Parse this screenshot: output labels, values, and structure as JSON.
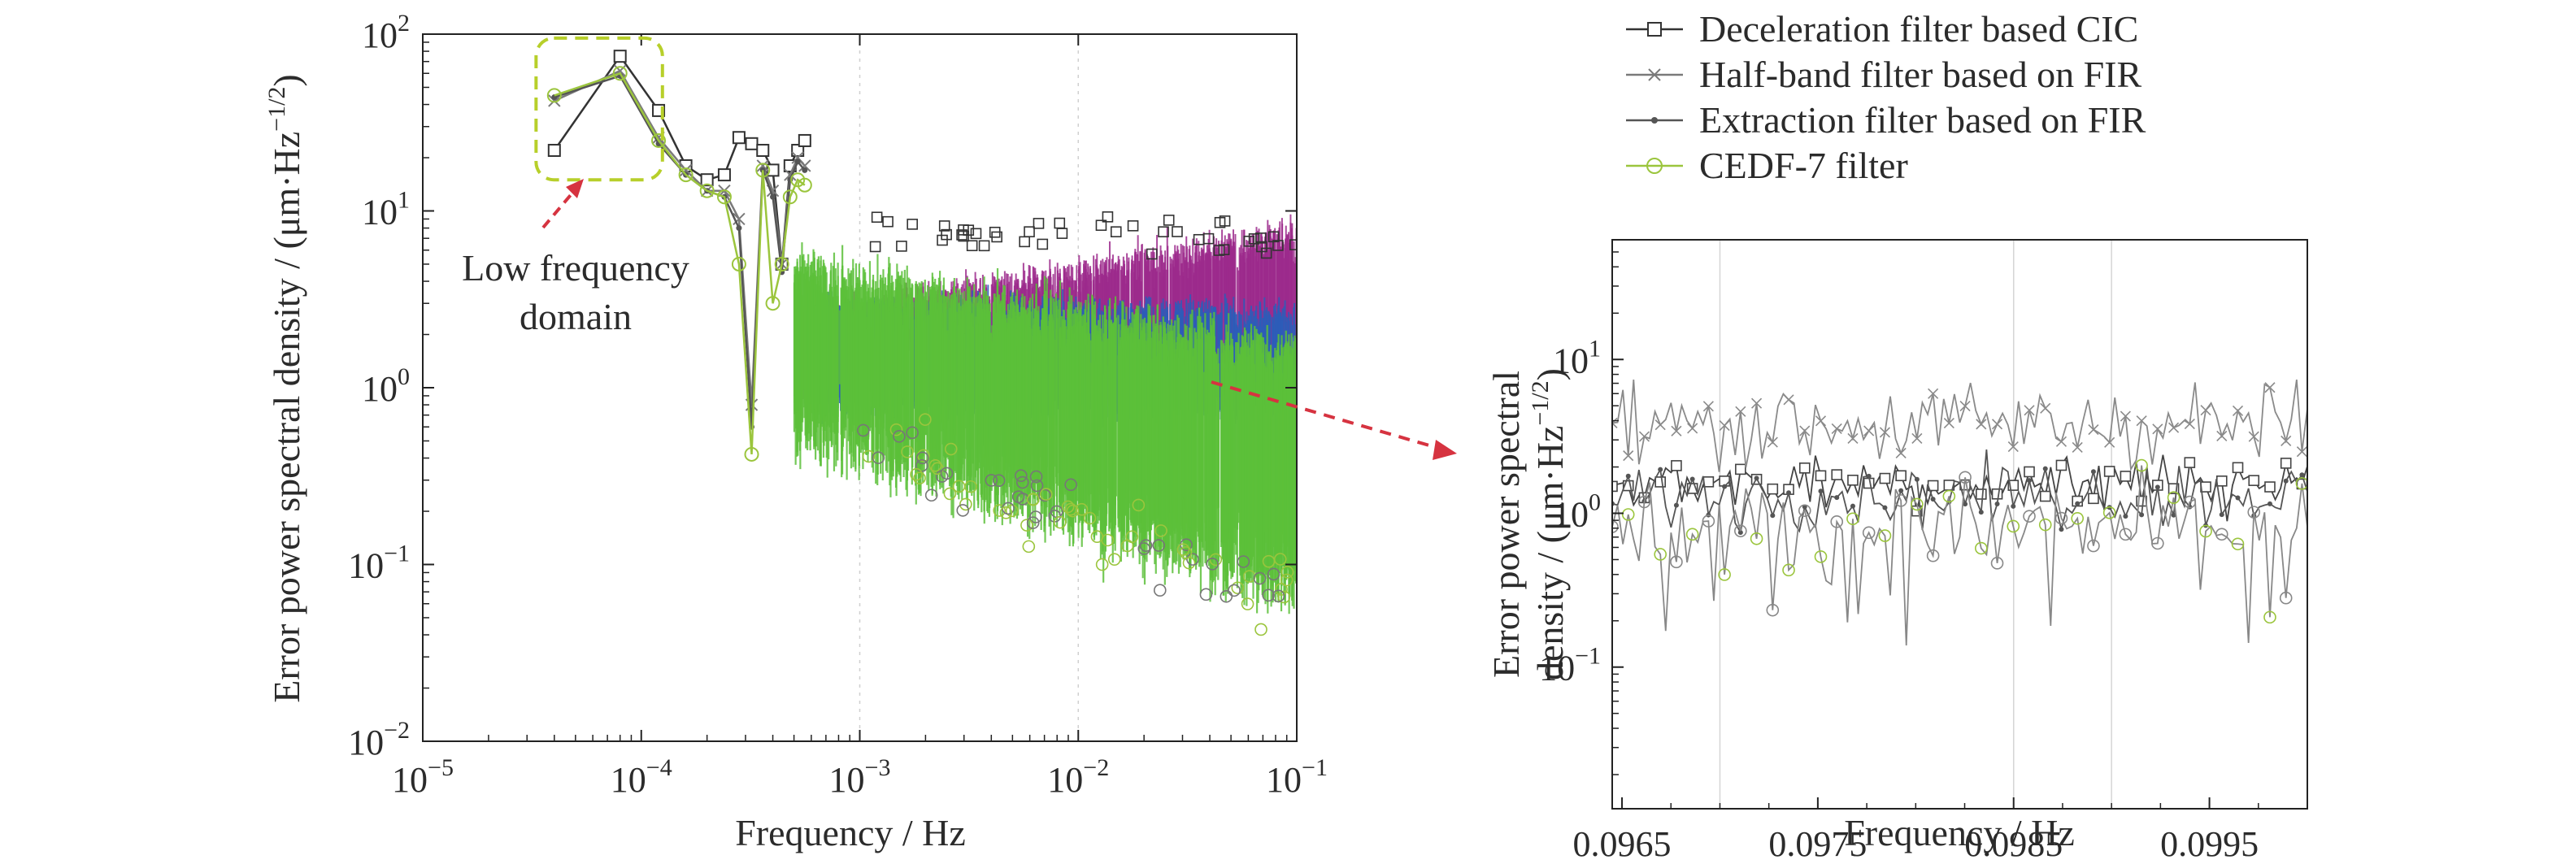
{
  "chart_data": [
    {
      "type": "line",
      "panel": "main",
      "xscale": "log",
      "yscale": "log",
      "xlim": [
        1e-05,
        0.1
      ],
      "ylim": [
        0.01,
        100
      ],
      "xlabel": "Frequency / Hz",
      "ylabel": "Error power spectral density / (μm·Hz",
      "ylabel_exp": "−1/2",
      "ylabel_close": ")",
      "x_ticks": [
        {
          "value": 1e-05,
          "base": "10",
          "exp": "−5"
        },
        {
          "value": 0.0001,
          "base": "10",
          "exp": "−4"
        },
        {
          "value": 0.001,
          "base": "10",
          "exp": "−3"
        },
        {
          "value": 0.01,
          "base": "10",
          "exp": "−2"
        },
        {
          "value": 0.1,
          "base": "10",
          "exp": "−1"
        }
      ],
      "y_ticks": [
        {
          "value": 0.01,
          "base": "10",
          "exp": "−2"
        },
        {
          "value": 0.1,
          "base": "10",
          "exp": "−1"
        },
        {
          "value": 1,
          "base": "10",
          "exp": "0"
        },
        {
          "value": 10,
          "base": "10",
          "exp": "1"
        },
        {
          "value": 100,
          "base": "10",
          "exp": "2"
        }
      ],
      "annotation": {
        "line1": "Low frequency",
        "line2": "domain",
        "box_x": [
          3.3e-05,
          0.000125
        ],
        "box_y": [
          15,
          95
        ]
      },
      "series": [
        {
          "name": "Deceleration filter based CIC",
          "marker": "square",
          "color": "#333333",
          "x": [
            4e-05,
            8e-05,
            0.00012,
            0.00016,
            0.0002,
            0.00024,
            0.00028,
            0.00032,
            0.00036,
            0.0004,
            0.00044,
            0.00048,
            0.00052,
            0.00056
          ],
          "values": [
            22,
            75,
            37,
            18,
            15,
            16,
            26,
            24,
            22,
            17,
            5,
            18,
            22,
            25
          ]
        },
        {
          "name": "Half-band filter based on FIR",
          "marker": "x",
          "color": "#7a7a7a",
          "x": [
            4e-05,
            8e-05,
            0.00012,
            0.00016,
            0.0002,
            0.00024,
            0.00028,
            0.00032,
            0.00036,
            0.0004,
            0.00044,
            0.00048,
            0.00052,
            0.00056
          ],
          "values": [
            42,
            62,
            26,
            17,
            13,
            13,
            9,
            0.8,
            18,
            13,
            5,
            16,
            20,
            18
          ]
        },
        {
          "name": "Extraction filter based on FIR",
          "marker": "dot",
          "color": "#555555",
          "x": [
            4e-05,
            8e-05,
            0.00012,
            0.00016,
            0.0002,
            0.00024,
            0.00028,
            0.00032,
            0.00036,
            0.0004,
            0.00044,
            0.00048,
            0.00052,
            0.00056
          ],
          "values": [
            44,
            58,
            24,
            16,
            13,
            12,
            8,
            0.6,
            17,
            12,
            4.5,
            15,
            19,
            17
          ]
        },
        {
          "name": "CEDF-7 filter",
          "marker": "circle",
          "color": "#9bc53d",
          "x": [
            4e-05,
            8e-05,
            0.00012,
            0.00016,
            0.0002,
            0.00024,
            0.00028,
            0.00032,
            0.00036,
            0.0004,
            0.00044,
            0.00048,
            0.00052,
            0.00056
          ],
          "values": [
            45,
            60,
            25,
            16,
            13,
            12,
            5,
            0.42,
            17,
            3,
            5,
            12,
            15,
            14
          ]
        }
      ]
    },
    {
      "type": "line",
      "panel": "zoom",
      "xscale": "linear",
      "yscale": "log",
      "xlim": [
        0.09645,
        0.1
      ],
      "ylim": [
        0.012,
        60
      ],
      "xlabel": "Frequency / Hz",
      "ylabel_line1": "Error power spectral",
      "ylabel_line2": "density / (μm·Hz",
      "ylabel_exp": "−1/2",
      "ylabel_close": ")",
      "x_ticks": [
        "0.0965",
        "0.0975",
        "0.0985",
        "0.0995"
      ],
      "x_tick_values": [
        0.0965,
        0.0975,
        0.0985,
        0.0995
      ],
      "y_ticks": [
        {
          "value": 0.1,
          "base": "10",
          "exp": "−1"
        },
        {
          "value": 1,
          "base": "10",
          "exp": "0"
        },
        {
          "value": 10,
          "base": "10",
          "exp": "1"
        }
      ]
    }
  ],
  "legend": {
    "position": "top-right",
    "items": [
      {
        "label": "Deceleration filter based CIC",
        "marker": "square",
        "color": "#333333"
      },
      {
        "label": "Half-band filter based on FIR",
        "marker": "x",
        "color": "#7a7a7a"
      },
      {
        "label": "Extraction filter based on FIR",
        "marker": "dot",
        "color": "#555555"
      },
      {
        "label": "CEDF-7 filter",
        "marker": "circle",
        "color": "#9bc53d"
      }
    ]
  },
  "colors": {
    "green": "#5cbf3a",
    "purple": "#9c2a8c",
    "blue": "#2d5db8",
    "annotation_red": "#d63340",
    "annotation_box": "#b7cf2a"
  }
}
